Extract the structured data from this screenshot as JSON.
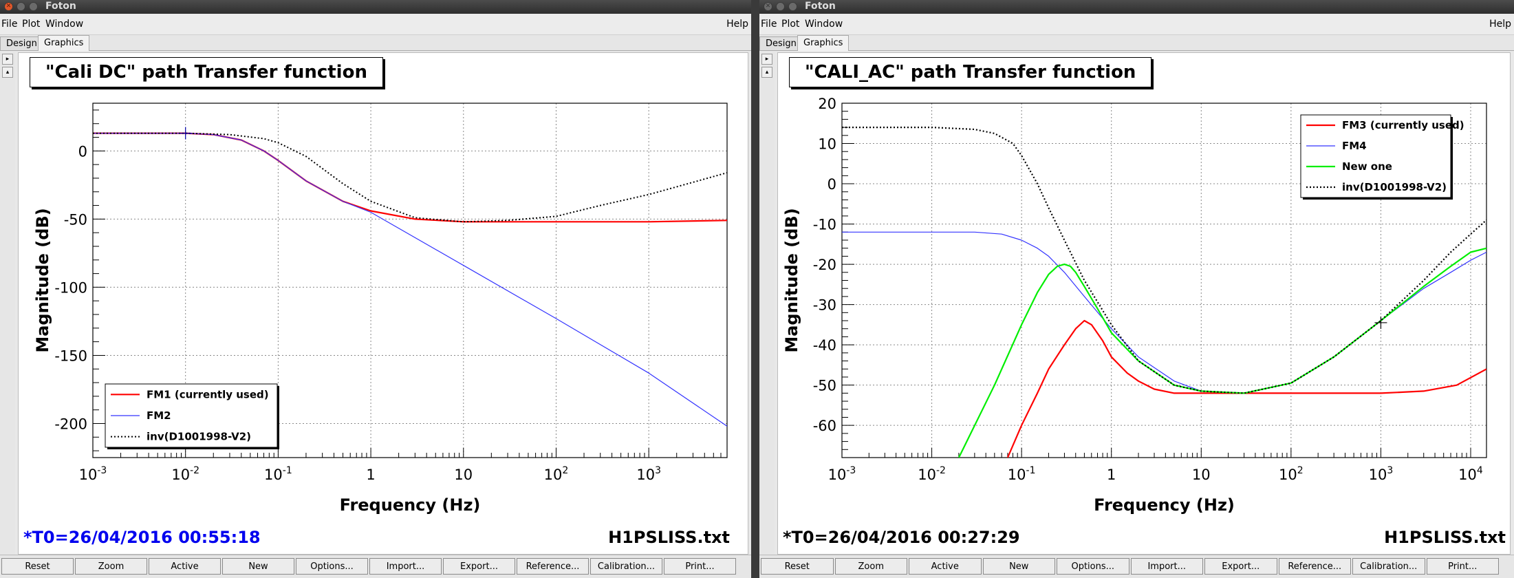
{
  "windows": [
    {
      "title": "Foton",
      "menu": {
        "file": "File",
        "plot": "Plot",
        "window": "Window",
        "help": "Help"
      },
      "tabs": [
        "Design",
        "Graphics"
      ],
      "toolbar": [
        "Reset",
        "Zoom",
        "Active",
        "New",
        "Options...",
        "Import...",
        "Export...",
        "Reference...",
        "Calibration...",
        "Print..."
      ],
      "plot_title": "\"Cali DC\" path Transfer function",
      "timestamp": "*T0=26/04/2016 00:55:18",
      "timestamp_color": "#0000ee",
      "filename": "H1PSLISS.txt"
    },
    {
      "title": "Foton",
      "menu": {
        "file": "File",
        "plot": "Plot",
        "window": "Window",
        "help": "Help"
      },
      "tabs": [
        "Design",
        "Graphics"
      ],
      "toolbar": [
        "Reset",
        "Zoom",
        "Active",
        "New",
        "Options...",
        "Import...",
        "Export...",
        "Reference...",
        "Calibration...",
        "Print..."
      ],
      "plot_title": "\"CALI_AC\" path Transfer function",
      "timestamp": "*T0=26/04/2016 00:27:29",
      "timestamp_color": "#000000",
      "filename": "H1PSLISS.txt"
    }
  ],
  "chart_data": [
    {
      "type": "line",
      "xlabel": "Frequency (Hz)",
      "ylabel": "Magnitude (dB)",
      "x_scale": "log",
      "xlim": [
        0.001,
        7000
      ],
      "ylim": [
        -225,
        35
      ],
      "x_ticks": [
        {
          "v": 0.001,
          "m": "10",
          "e": "-3"
        },
        {
          "v": 0.01,
          "m": "10",
          "e": "-2"
        },
        {
          "v": 0.1,
          "m": "10",
          "e": "-1"
        },
        {
          "v": 1,
          "m": "1",
          "e": ""
        },
        {
          "v": 10,
          "m": "10",
          "e": ""
        },
        {
          "v": 100,
          "m": "10",
          "e": "2"
        },
        {
          "v": 1000,
          "m": "10",
          "e": "3"
        }
      ],
      "y_ticks": [
        0,
        -50,
        -100,
        -150,
        -200
      ],
      "grid": true,
      "legend_position": "bottom-left",
      "series": [
        {
          "name": "FM1 (currently used)",
          "color": "#ff0000",
          "width": 2.2,
          "dash": "",
          "x": [
            0.001,
            0.01,
            0.02,
            0.04,
            0.07,
            0.1,
            0.2,
            0.5,
            1,
            3,
            10,
            30,
            100,
            1000,
            7000
          ],
          "y": [
            13,
            13,
            12,
            8,
            0,
            -7,
            -22,
            -37,
            -44,
            -50,
            -52,
            -52,
            -52,
            -52,
            -51
          ]
        },
        {
          "name": "FM2",
          "color": "#3333ff",
          "width": 1.2,
          "dash": "",
          "x": [
            0.001,
            0.01,
            0.02,
            0.04,
            0.07,
            0.1,
            0.2,
            0.5,
            1,
            10,
            100,
            1000,
            7000
          ],
          "y": [
            13,
            13,
            12,
            8,
            0,
            -7,
            -22,
            -37,
            -45,
            -84,
            -123,
            -163,
            -202
          ]
        },
        {
          "name": "inv(D1001998-V2)",
          "color": "#000000",
          "width": 2,
          "dash": "2,3",
          "x": [
            0.001,
            0.01,
            0.03,
            0.07,
            0.1,
            0.2,
            0.5,
            1,
            3,
            10,
            30,
            100,
            300,
            1000,
            3000,
            7000
          ],
          "y": [
            13,
            13,
            12,
            9,
            6,
            -4,
            -24,
            -37,
            -49,
            -52,
            -51,
            -48,
            -40,
            -32,
            -23,
            -16
          ]
        }
      ],
      "markers": [
        {
          "x": 0.01,
          "y": 13,
          "color": "#0000aa"
        }
      ]
    },
    {
      "type": "line",
      "xlabel": "Frequency (Hz)",
      "ylabel": "Magnitude (dB)",
      "x_scale": "log",
      "xlim": [
        0.001,
        15000
      ],
      "ylim": [
        -68,
        20
      ],
      "x_ticks": [
        {
          "v": 0.001,
          "m": "10",
          "e": "-3"
        },
        {
          "v": 0.01,
          "m": "10",
          "e": "-2"
        },
        {
          "v": 0.1,
          "m": "10",
          "e": "-1"
        },
        {
          "v": 1,
          "m": "1",
          "e": ""
        },
        {
          "v": 10,
          "m": "10",
          "e": ""
        },
        {
          "v": 100,
          "m": "10",
          "e": "2"
        },
        {
          "v": 1000,
          "m": "10",
          "e": "3"
        },
        {
          "v": 10000,
          "m": "10",
          "e": "4"
        }
      ],
      "y_ticks": [
        20,
        10,
        0,
        -10,
        -20,
        -30,
        -40,
        -50,
        -60
      ],
      "grid": true,
      "legend_position": "top-right",
      "series": [
        {
          "name": "FM3 (currently used)",
          "color": "#ff0000",
          "width": 2.2,
          "dash": "",
          "x": [
            0.07,
            0.1,
            0.15,
            0.2,
            0.3,
            0.4,
            0.5,
            0.6,
            0.8,
            1,
            1.5,
            2,
            3,
            5,
            10,
            30,
            100,
            1000,
            3000,
            7000,
            15000
          ],
          "y": [
            -68,
            -60,
            -52,
            -46,
            -40,
            -36,
            -34,
            -35,
            -39,
            -43,
            -47,
            -49,
            -51,
            -52,
            -52,
            -52,
            -52,
            -52,
            -51.5,
            -50,
            -46
          ]
        },
        {
          "name": "FM4",
          "color": "#3333ff",
          "width": 1.2,
          "dash": "",
          "x": [
            0.001,
            0.01,
            0.03,
            0.06,
            0.1,
            0.15,
            0.2,
            0.3,
            0.5,
            1,
            2,
            5,
            10,
            30,
            100,
            300,
            1000,
            3000,
            6000,
            10000,
            15000
          ],
          "y": [
            -12,
            -12,
            -12,
            -12.5,
            -14,
            -16,
            -18,
            -22,
            -28,
            -36,
            -43,
            -49,
            -51.5,
            -52,
            -49.5,
            -43,
            -34,
            -26,
            -22,
            -19,
            -17
          ]
        },
        {
          "name": "New one",
          "color": "#00ee00",
          "width": 2.2,
          "dash": "",
          "x": [
            0.02,
            0.05,
            0.1,
            0.15,
            0.2,
            0.25,
            0.3,
            0.35,
            0.4,
            0.5,
            0.7,
            1,
            2,
            5,
            10,
            30,
            100,
            300,
            1000,
            3000,
            6000,
            10000,
            15000
          ],
          "y": [
            -68,
            -50,
            -35,
            -27,
            -22.5,
            -20.5,
            -20,
            -20.5,
            -22,
            -25.5,
            -31,
            -37,
            -44,
            -50,
            -51.5,
            -52,
            -49.5,
            -43,
            -34,
            -25.5,
            -20.5,
            -17,
            -16
          ]
        },
        {
          "name": "inv(D1001998-V2)",
          "color": "#000000",
          "width": 2.2,
          "dash": "2,3",
          "x": [
            0.001,
            0.01,
            0.03,
            0.05,
            0.08,
            0.1,
            0.15,
            0.2,
            0.3,
            0.5,
            1,
            2,
            5,
            10,
            30,
            100,
            300,
            1000,
            3000,
            6000,
            10000,
            15000
          ],
          "y": [
            14,
            14,
            13.5,
            12.5,
            10,
            7,
            0,
            -6,
            -14,
            -24,
            -35,
            -44,
            -50,
            -51.5,
            -52,
            -49.5,
            -43,
            -34,
            -24,
            -17,
            -12.5,
            -9
          ]
        }
      ],
      "markers": [
        {
          "x": 1000,
          "y": -34.5,
          "color": "#000000"
        }
      ]
    }
  ]
}
